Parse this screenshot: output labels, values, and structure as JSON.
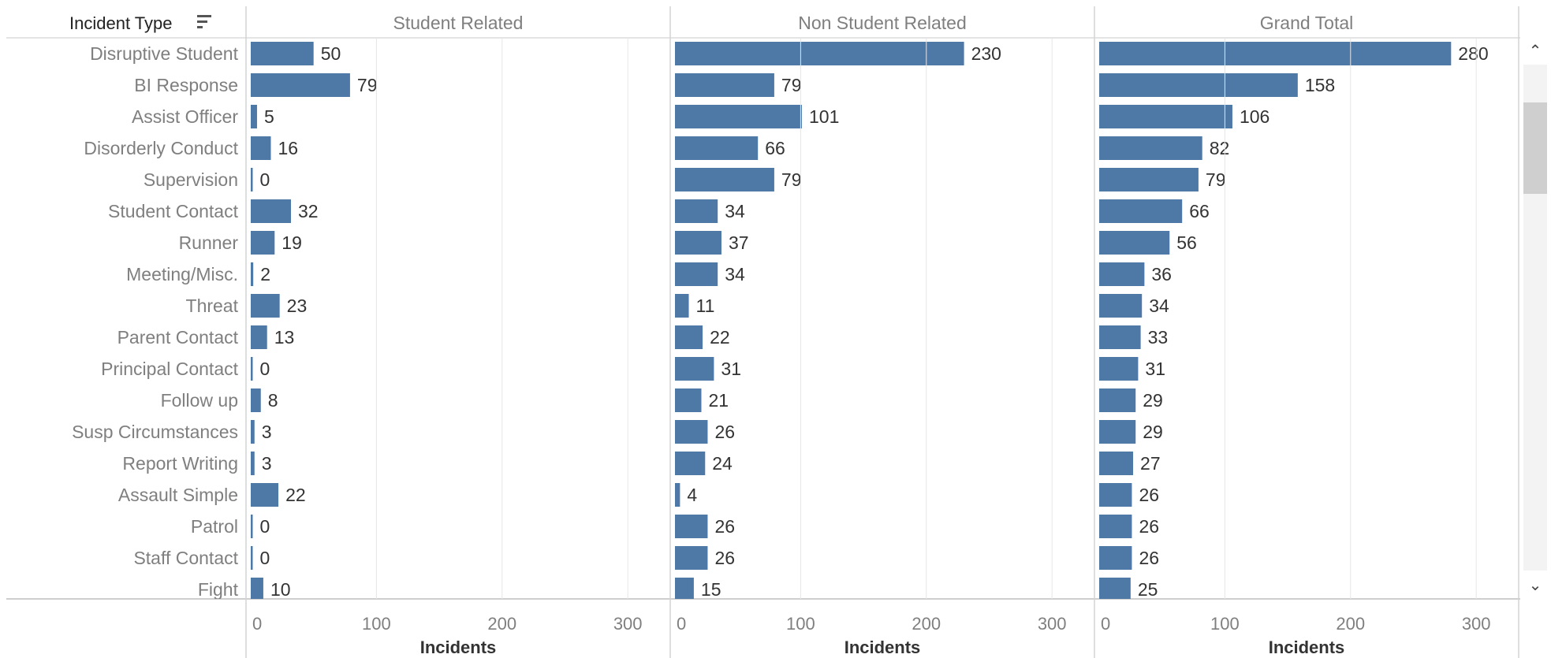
{
  "sheet": {
    "row_header": "Incident Type",
    "sort_icon": "sort-descending-icon"
  },
  "colors": {
    "bar": "#4e79a7",
    "grid": "#e6e6e6",
    "label_text": "#7f7f7f",
    "value_text": "#333333"
  },
  "chart_data": {
    "type": "bar",
    "orientation": "horizontal",
    "xlabel": "Incidents",
    "xlim": [
      0,
      330
    ],
    "xticks": [
      0,
      100,
      200,
      300
    ],
    "panels": [
      "Student Related",
      "Non Student Related",
      "Grand Total"
    ],
    "categories": [
      "Disruptive Student",
      "BI Response",
      "Assist Officer",
      "Disorderly Conduct",
      "Supervision",
      "Student Contact",
      "Runner",
      "Meeting/Misc.",
      "Threat",
      "Parent Contact",
      "Principal Contact",
      "Follow up",
      "Susp Circumstances",
      "Report Writing",
      "Assault Simple",
      "Patrol",
      "Staff Contact",
      "Fight"
    ],
    "series": [
      {
        "name": "Student Related",
        "values": [
          50,
          79,
          5,
          16,
          0,
          32,
          19,
          2,
          23,
          13,
          0,
          8,
          3,
          3,
          22,
          0,
          0,
          10
        ]
      },
      {
        "name": "Non Student Related",
        "values": [
          230,
          79,
          101,
          66,
          79,
          34,
          37,
          34,
          11,
          22,
          31,
          21,
          26,
          24,
          4,
          26,
          26,
          15
        ]
      },
      {
        "name": "Grand Total",
        "values": [
          280,
          158,
          106,
          82,
          79,
          66,
          56,
          36,
          34,
          33,
          31,
          29,
          29,
          27,
          26,
          26,
          26,
          25
        ]
      }
    ]
  },
  "scrollbar": {
    "up_icon": "chevron-up-icon",
    "down_icon": "chevron-down-icon"
  }
}
